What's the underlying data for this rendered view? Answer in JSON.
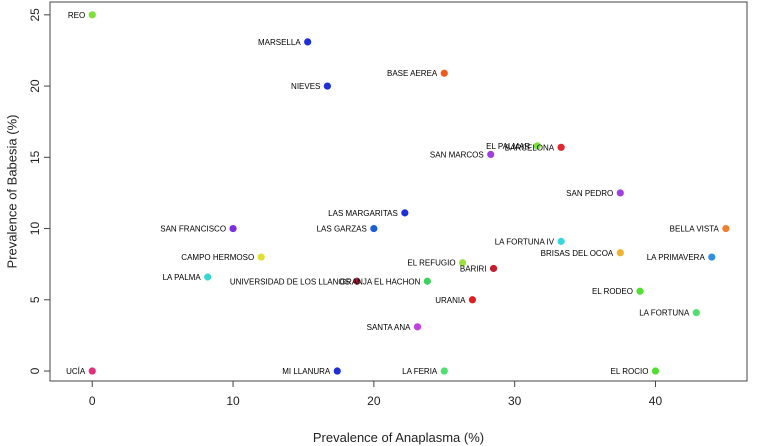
{
  "chart_data": {
    "type": "scatter",
    "title": "",
    "xlabel": "Prevalence of Anaplasma (%)",
    "ylabel": "Prevalence of Babesia (%)",
    "xlim": [
      -3,
      46.5
    ],
    "ylim": [
      -0.7,
      25.9
    ],
    "xticks": [
      0,
      10,
      20,
      30,
      40
    ],
    "yticks": [
      0,
      5,
      10,
      15,
      20,
      25
    ],
    "grid": false,
    "points": [
      {
        "label": "REO",
        "x": 0,
        "y": 25,
        "color": "#7fe03a",
        "label_side": "left"
      },
      {
        "label": "MARSELLA",
        "x": 15.3,
        "y": 23.1,
        "color": "#1f2fd6",
        "label_side": "left"
      },
      {
        "label": "BASE AEREA",
        "x": 25.0,
        "y": 20.9,
        "color": "#ee5a1e",
        "label_side": "left"
      },
      {
        "label": "NIEVES",
        "x": 16.7,
        "y": 20.0,
        "color": "#1f2fd6",
        "label_side": "left"
      },
      {
        "label": "EL PALMAR",
        "x": 31.6,
        "y": 15.8,
        "color": "#7fe03a",
        "label_side": "left"
      },
      {
        "label": "BARCELONA",
        "x": 33.3,
        "y": 15.7,
        "color": "#e0262e",
        "label_side": "left"
      },
      {
        "label": "SAN MARCOS",
        "x": 28.3,
        "y": 15.2,
        "color": "#a040e0",
        "label_side": "left"
      },
      {
        "label": "SAN PEDRO",
        "x": 37.5,
        "y": 12.5,
        "color": "#a040e0",
        "label_side": "left"
      },
      {
        "label": "LAS MARGARITAS",
        "x": 22.2,
        "y": 11.1,
        "color": "#1f2fd6",
        "label_side": "left"
      },
      {
        "label": "SAN FRANCISCO",
        "x": 10.0,
        "y": 10.0,
        "color": "#7a2fe0",
        "label_side": "left"
      },
      {
        "label": "LAS GARZAS",
        "x": 20.0,
        "y": 10.0,
        "color": "#1f5fd6",
        "label_side": "left"
      },
      {
        "label": "BELLA VISTA",
        "x": 45.0,
        "y": 10.0,
        "color": "#f08030",
        "label_side": "left"
      },
      {
        "label": "LA FORTUNA IV",
        "x": 33.3,
        "y": 9.1,
        "color": "#3ad6e0",
        "label_side": "left"
      },
      {
        "label": "BRISAS DEL OCOA",
        "x": 37.5,
        "y": 8.3,
        "color": "#f0b030",
        "label_side": "left"
      },
      {
        "label": "CAMPO HERMOSO",
        "x": 12.0,
        "y": 8.0,
        "color": "#e0e030",
        "label_side": "left"
      },
      {
        "label": "LA PRIMAVERA",
        "x": 44.0,
        "y": 8.0,
        "color": "#2f8fe0",
        "label_side": "left"
      },
      {
        "label": "EL REFUGIO",
        "x": 26.3,
        "y": 7.6,
        "color": "#9fe040",
        "label_side": "left"
      },
      {
        "label": "BARIRI",
        "x": 28.5,
        "y": 7.2,
        "color": "#c02030",
        "label_side": "left"
      },
      {
        "label": "LA PALMA",
        "x": 8.2,
        "y": 6.6,
        "color": "#3ad6d0",
        "label_side": "left"
      },
      {
        "label": "UNIVERSIDAD DE LOS LLANOS",
        "x": 18.8,
        "y": 6.3,
        "color": "#a0203a",
        "label_side": "left"
      },
      {
        "label": "GRANJA EL HACHON",
        "x": 23.8,
        "y": 6.3,
        "color": "#40d060",
        "label_side": "left"
      },
      {
        "label": "EL RODEO",
        "x": 38.9,
        "y": 5.6,
        "color": "#50e030",
        "label_side": "left"
      },
      {
        "label": "URANIA",
        "x": 27.0,
        "y": 5.0,
        "color": "#e02020",
        "label_side": "left"
      },
      {
        "label": "LA FORTUNA",
        "x": 42.9,
        "y": 4.1,
        "color": "#50e070",
        "label_side": "left"
      },
      {
        "label": "SANTA ANA",
        "x": 23.1,
        "y": 3.1,
        "color": "#c040e0",
        "label_side": "left"
      },
      {
        "label": "UCÍA",
        "x": 0,
        "y": 0,
        "color": "#e0307a",
        "label_side": "left"
      },
      {
        "label": "MI LLANURA",
        "x": 17.4,
        "y": 0,
        "color": "#1f2fd6",
        "label_side": "left"
      },
      {
        "label": "LA FERIA",
        "x": 25.0,
        "y": 0,
        "color": "#50e070",
        "label_side": "left"
      },
      {
        "label": "EL ROCIO",
        "x": 40.0,
        "y": 0,
        "color": "#50e030",
        "label_side": "left"
      }
    ]
  }
}
